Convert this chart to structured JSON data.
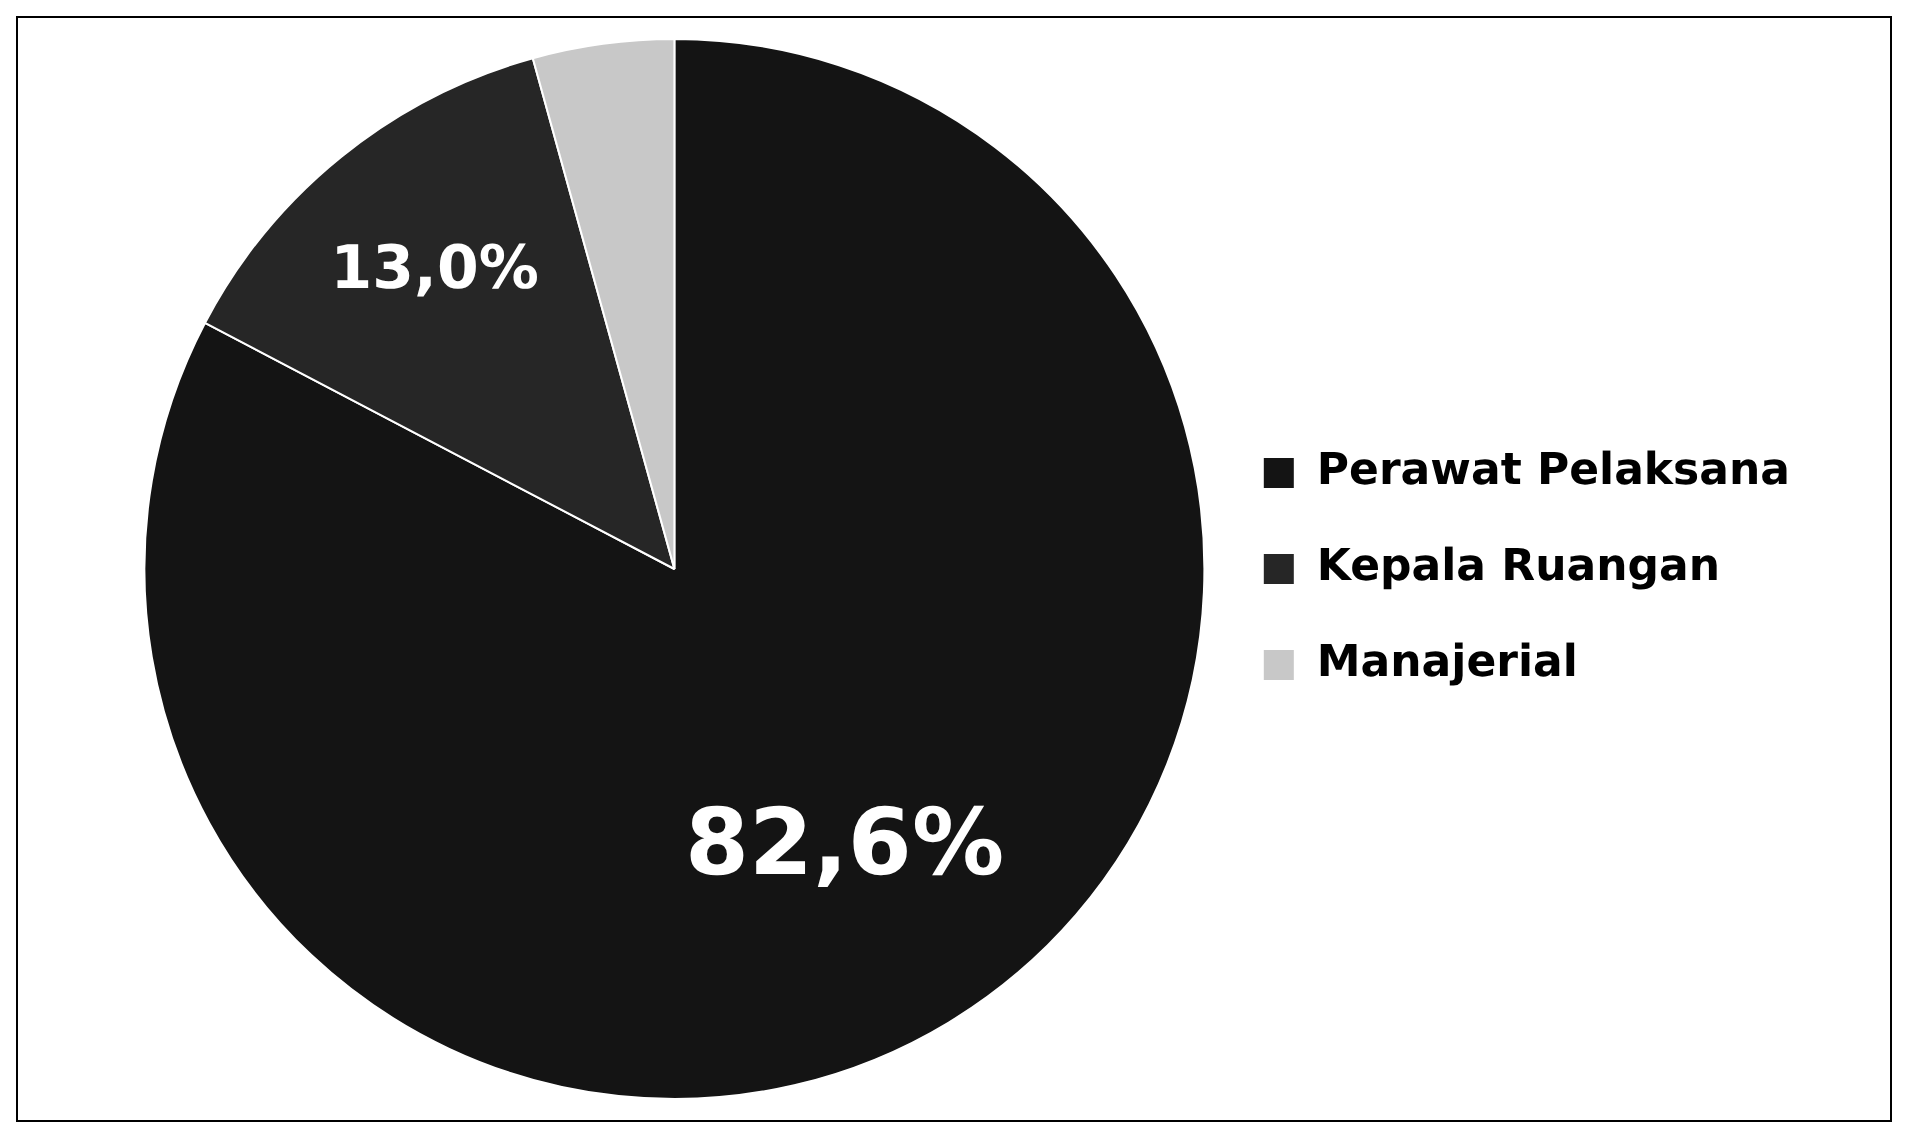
{
  "chart_data": {
    "type": "pie",
    "categories": [
      "Perawat Pelaksana",
      "Kepala Ruangan",
      "Manajerial"
    ],
    "values": [
      82.6,
      13.0,
      4.3
    ],
    "colors": [
      "#141414",
      "#262626",
      "#c8c8c8"
    ],
    "value_labels": [
      "82,6%",
      "13,0%",
      null
    ],
    "legend": "right"
  }
}
